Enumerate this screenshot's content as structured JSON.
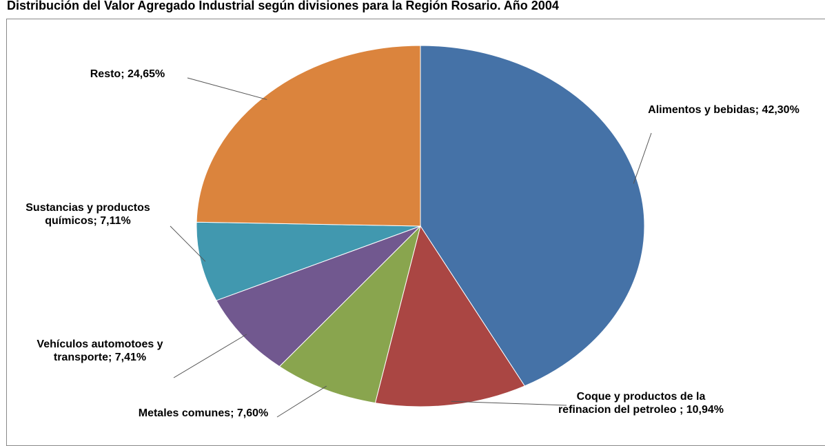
{
  "chart_data": {
    "type": "pie",
    "title": "Distribución del Valor Agregado Industrial según divisiones para la Región Rosario. Año 2004",
    "values": [
      42.3,
      10.94,
      7.6,
      7.41,
      7.11,
      24.65
    ],
    "value_labels": [
      "Alimentos y bebidas; 42,30%",
      "Coque y productos de la refinacion del petroleo ; 10,94%",
      "Metales comunes; 7,60%",
      "Vehículos automotoes y transporte; 7,41%",
      "Sustancias y productos químicos; 7,11%",
      "Resto; 24,65%"
    ],
    "colors": [
      "#4572a7",
      "#aa4643",
      "#89a54e",
      "#71588f",
      "#4198af",
      "#db843d"
    ]
  }
}
